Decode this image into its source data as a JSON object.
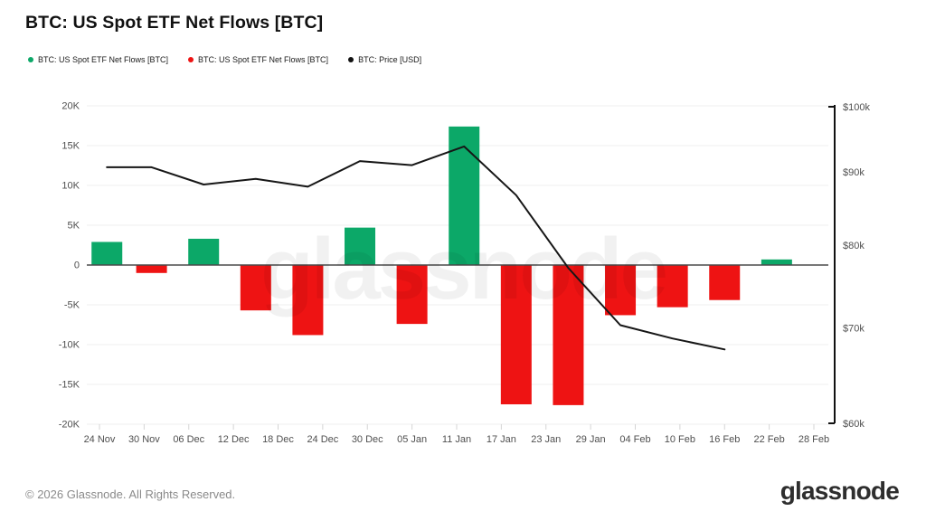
{
  "title": "BTC: US Spot ETF Net Flows [BTC]",
  "legend": [
    {
      "label": "BTC: US Spot ETF Net Flows [BTC]",
      "color": "#0ca868"
    },
    {
      "label": "BTC: US Spot ETF Net Flows [BTC]",
      "color": "#ee1313"
    },
    {
      "label": "BTC: Price [USD]",
      "color": "#111111"
    }
  ],
  "watermark": "glassnode",
  "footer": {
    "copyright": "© 2026 Glassnode. All Rights Reserved.",
    "brand": "glassnode"
  },
  "chart_data": {
    "type": "combo",
    "title": "BTC: US Spot ETF Net Flows [BTC]",
    "grid": "horizontal",
    "legend_position": "top-left",
    "x_axis": {
      "tick_labels": [
        "24 Nov",
        "30 Nov",
        "06 Dec",
        "12 Dec",
        "18 Dec",
        "24 Dec",
        "30 Dec",
        "05 Jan",
        "11 Jan",
        "17 Jan",
        "23 Jan",
        "29 Jan",
        "04 Feb",
        "10 Feb",
        "16 Feb",
        "22 Feb",
        "28 Feb"
      ],
      "tick_day_offsets": [
        0,
        6,
        12,
        18,
        24,
        30,
        36,
        42,
        48,
        54,
        60,
        66,
        72,
        78,
        84,
        90,
        96
      ],
      "range_days": [
        0,
        96
      ]
    },
    "y_axis_left": {
      "title": "Net Flows [BTC]",
      "tick_labels": [
        "20K",
        "15K",
        "10K",
        "5K",
        "0",
        "-5K",
        "-10K",
        "-15K",
        "-20K"
      ],
      "tick_values": [
        20000,
        15000,
        10000,
        5000,
        0,
        -5000,
        -10000,
        -15000,
        -20000
      ],
      "range": [
        -20000,
        20000
      ],
      "scale": "linear"
    },
    "y_axis_right": {
      "title": "Price [USD]",
      "tick_labels": [
        "$100k",
        "$90k",
        "$80k",
        "$70k",
        "$60k"
      ],
      "tick_values": [
        100000,
        90000,
        80000,
        70000,
        60000
      ],
      "range": [
        60000,
        100000
      ],
      "scale": "log"
    },
    "series": [
      {
        "name": "BTC: US Spot ETF Net Flows [BTC]",
        "type": "bar",
        "axis": "left",
        "unit": "BTC",
        "positive_color": "#0ca868",
        "negative_color": "#ee1313",
        "categories": [
          "25 Nov",
          "01 Dec",
          "08 Dec",
          "15 Dec",
          "22 Dec",
          "29 Dec",
          "05 Jan",
          "12 Jan",
          "19 Jan",
          "26 Jan",
          "02 Feb",
          "09 Feb",
          "16 Feb",
          "23 Feb"
        ],
        "day_offsets": [
          1,
          7,
          14,
          21,
          28,
          35,
          42,
          49,
          56,
          63,
          70,
          77,
          84,
          91
        ],
        "values": [
          2900,
          -1000,
          3300,
          -5700,
          -8800,
          4700,
          -7400,
          17400,
          -17500,
          -17600,
          -6300,
          -5300,
          -4400,
          700
        ]
      },
      {
        "name": "BTC: Price [USD]",
        "type": "line",
        "axis": "right",
        "unit": "USD",
        "color": "#161616",
        "categories": [
          "25 Nov",
          "01 Dec",
          "08 Dec",
          "15 Dec",
          "22 Dec",
          "29 Dec",
          "05 Jan",
          "12 Jan",
          "19 Jan",
          "26 Jan",
          "02 Feb",
          "09 Feb",
          "16 Feb"
        ],
        "day_offsets": [
          1,
          7,
          14,
          21,
          28,
          35,
          42,
          49,
          56,
          63,
          70,
          77,
          84
        ],
        "values": [
          90700,
          90700,
          88200,
          89000,
          87900,
          91600,
          91000,
          93800,
          86700,
          77100,
          70300,
          68800,
          67600
        ]
      }
    ]
  }
}
